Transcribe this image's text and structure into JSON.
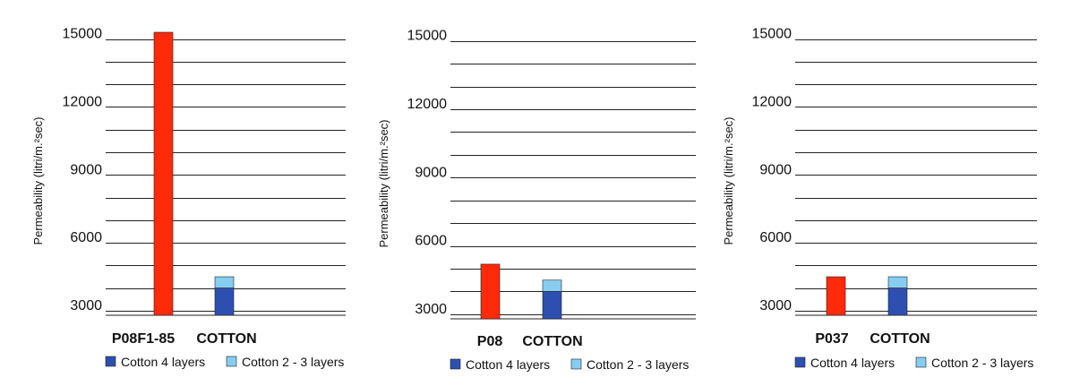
{
  "colors": {
    "product": "#ff2a0a",
    "cotton_4_layers": "#2e4fb0",
    "cotton_2_3_layers": "#87cdf2",
    "grid": "#222222"
  },
  "legend": [
    {
      "label": "Cotton 4 layers",
      "color": "#2e4fb0"
    },
    {
      "label": "Cotton 2 - 3 layers",
      "color": "#87cdf2"
    }
  ],
  "chart_data": [
    {
      "type": "bar",
      "ylabel": "Permeability (litri/m.²sec)",
      "ylim": [
        2800,
        15300
      ],
      "yticks": [
        3000,
        6000,
        9000,
        12000,
        15000
      ],
      "grid": true,
      "categories": [
        "P08F1-85",
        "COTTON"
      ],
      "product_value": 15300,
      "cotton_4_layers": 4000,
      "cotton_2_3_layers": 4500
    },
    {
      "type": "bar",
      "ylabel": "Permeability (litri/m.²sec)",
      "ylim": [
        2800,
        15300
      ],
      "yticks": [
        3000,
        6000,
        9000,
        12000,
        15000
      ],
      "grid": true,
      "categories": [
        "P08",
        "COTTON"
      ],
      "product_value": 5200,
      "cotton_4_layers": 4000,
      "cotton_2_3_layers": 4500
    },
    {
      "type": "bar",
      "ylabel": "Permeability (litri/m.²sec)",
      "ylim": [
        2800,
        15300
      ],
      "yticks": [
        3000,
        6000,
        9000,
        12000,
        15000
      ],
      "grid": true,
      "categories": [
        "P037",
        "COTTON"
      ],
      "product_value": 4500,
      "cotton_4_layers": 4000,
      "cotton_2_3_layers": 4500
    }
  ]
}
